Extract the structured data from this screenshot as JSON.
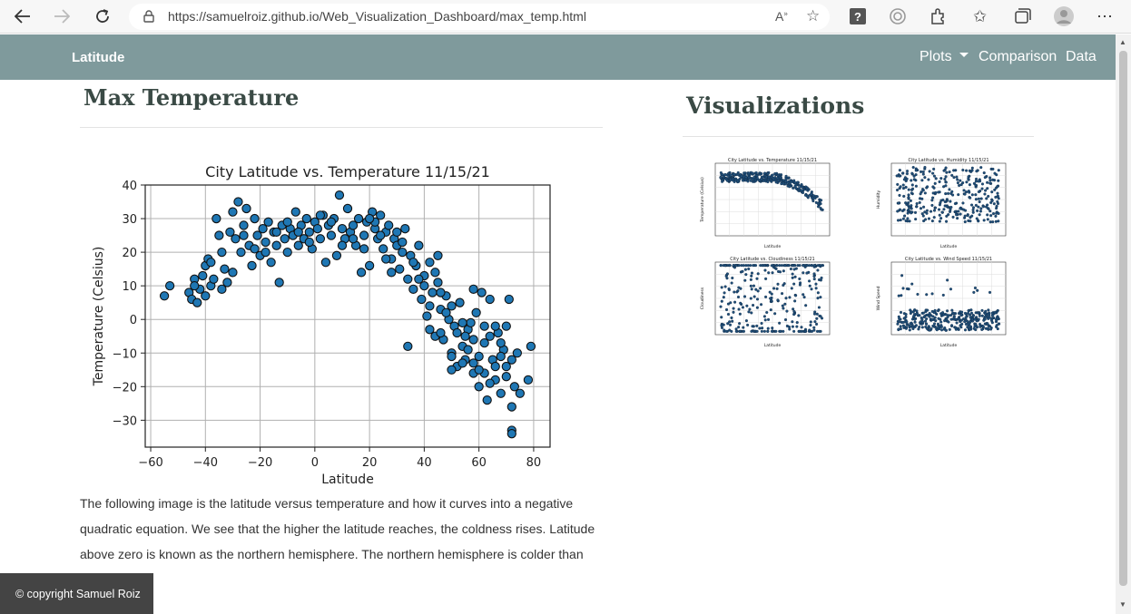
{
  "browser": {
    "url": "https://samuelroiz.github.io/Web_Visualization_Dashboard/max_temp.html"
  },
  "navbar": {
    "brand": "Latitude",
    "links": [
      "Plots",
      "Comparison",
      "Data"
    ]
  },
  "page": {
    "title": "Max Temperature",
    "visualizations_heading": "Visualizations",
    "description": "The following image is the latitude versus temperature and how it curves into a negative quadratic equation. We see that the higher the latitude reaches, the coldness rises. Latitude above zero is known as the northern hemisphere. The northern hemisphere is colder than hemisphere.",
    "footer": "© copyright Samuel Roiz"
  },
  "colors": {
    "navbar": "#7f9a9c",
    "marker": "#1f77b4",
    "heading": "#3a4a45"
  },
  "chart_data": {
    "type": "scatter",
    "title": "City Latitude vs. Temperature 11/15/21",
    "xlabel": "Latitude",
    "ylabel": "Temperature (Celsius)",
    "xlim": [
      -62,
      86
    ],
    "ylim": [
      -38,
      40
    ],
    "xticks": [
      -60,
      -40,
      -20,
      0,
      20,
      40,
      60,
      80
    ],
    "yticks": [
      40,
      30,
      20,
      10,
      0,
      -10,
      -20,
      -30
    ],
    "grid": true,
    "points": [
      [
        -55,
        7
      ],
      [
        -53,
        10
      ],
      [
        -46,
        8
      ],
      [
        -45,
        6
      ],
      [
        -44,
        12
      ],
      [
        -43,
        5
      ],
      [
        -42,
        9
      ],
      [
        -41,
        13
      ],
      [
        -40,
        16
      ],
      [
        -39,
        18
      ],
      [
        -38,
        10
      ],
      [
        -37,
        12
      ],
      [
        -36,
        30
      ],
      [
        -35,
        25
      ],
      [
        -34,
        20
      ],
      [
        -33,
        15
      ],
      [
        -32,
        11
      ],
      [
        -31,
        26
      ],
      [
        -30,
        32
      ],
      [
        -29,
        24
      ],
      [
        -28,
        35
      ],
      [
        -27,
        20
      ],
      [
        -26,
        28
      ],
      [
        -25,
        33
      ],
      [
        -24,
        22
      ],
      [
        -23,
        16
      ],
      [
        -22,
        30
      ],
      [
        -21,
        25
      ],
      [
        -20,
        19
      ],
      [
        -19,
        27
      ],
      [
        -18,
        23
      ],
      [
        -17,
        29
      ],
      [
        -16,
        17
      ],
      [
        -15,
        26
      ],
      [
        -14,
        22
      ],
      [
        -13,
        11
      ],
      [
        -12,
        28
      ],
      [
        -11,
        24
      ],
      [
        -10,
        20
      ],
      [
        -9,
        27
      ],
      [
        -8,
        25
      ],
      [
        -7,
        32
      ],
      [
        -6,
        22
      ],
      [
        -5,
        28
      ],
      [
        -4,
        24
      ],
      [
        -3,
        30
      ],
      [
        -2,
        26
      ],
      [
        -1,
        21
      ],
      [
        0,
        29
      ],
      [
        1,
        27
      ],
      [
        2,
        24
      ],
      [
        3,
        31
      ],
      [
        4,
        17
      ],
      [
        5,
        28
      ],
      [
        6,
        25
      ],
      [
        7,
        30
      ],
      [
        8,
        19
      ],
      [
        9,
        37
      ],
      [
        10,
        27
      ],
      [
        11,
        24
      ],
      [
        12,
        33
      ],
      [
        13,
        26
      ],
      [
        14,
        28
      ],
      [
        15,
        22
      ],
      [
        16,
        30
      ],
      [
        17,
        14
      ],
      [
        18,
        25
      ],
      [
        19,
        29
      ],
      [
        20,
        16
      ],
      [
        21,
        32
      ],
      [
        22,
        27
      ],
      [
        23,
        24
      ],
      [
        24,
        31
      ],
      [
        25,
        21
      ],
      [
        26,
        26
      ],
      [
        27,
        28
      ],
      [
        28,
        18
      ],
      [
        29,
        24
      ],
      [
        30,
        22
      ],
      [
        31,
        15
      ],
      [
        32,
        20
      ],
      [
        33,
        27
      ],
      [
        34,
        12
      ],
      [
        35,
        19
      ],
      [
        36,
        9
      ],
      [
        37,
        16
      ],
      [
        38,
        22
      ],
      [
        39,
        6
      ],
      [
        40,
        13
      ],
      [
        41,
        1
      ],
      [
        42,
        17
      ],
      [
        43,
        8
      ],
      [
        44,
        -5
      ],
      [
        45,
        11
      ],
      [
        46,
        3
      ],
      [
        47,
        -6
      ],
      [
        48,
        7
      ],
      [
        49,
        0
      ],
      [
        50,
        -10
      ],
      [
        51,
        -2
      ],
      [
        52,
        -14
      ],
      [
        53,
        5
      ],
      [
        54,
        -8
      ],
      [
        55,
        -12
      ],
      [
        56,
        -3
      ],
      [
        57,
        -1
      ],
      [
        58,
        -16
      ],
      [
        59,
        2
      ],
      [
        60,
        -20
      ],
      [
        61,
        8
      ],
      [
        62,
        -7
      ],
      [
        63,
        -24
      ],
      [
        64,
        6
      ],
      [
        65,
        -12
      ],
      [
        66,
        -18
      ],
      [
        67,
        -4
      ],
      [
        68,
        -22
      ],
      [
        69,
        -9
      ],
      [
        70,
        -14
      ],
      [
        71,
        6
      ],
      [
        72,
        -33
      ],
      [
        72,
        -26
      ],
      [
        73,
        -20
      ],
      [
        74,
        -10
      ],
      [
        75,
        -22
      ],
      [
        78,
        -18
      ],
      [
        79,
        -8
      ],
      [
        34,
        -8
      ],
      [
        45,
        19
      ],
      [
        50,
        -15
      ],
      [
        55,
        -5
      ],
      [
        58,
        9
      ],
      [
        62,
        -16
      ],
      [
        66,
        -2
      ],
      [
        70,
        -17
      ],
      [
        42,
        4
      ],
      [
        48,
        2
      ],
      [
        52,
        -4
      ],
      [
        56,
        -9
      ],
      [
        60,
        -11
      ],
      [
        64,
        -5
      ],
      [
        68,
        -11
      ],
      [
        30,
        26
      ],
      [
        26,
        18
      ],
      [
        22,
        29
      ],
      [
        18,
        21
      ],
      [
        14,
        24
      ],
      [
        10,
        22
      ],
      [
        6,
        29
      ],
      [
        2,
        31
      ],
      [
        -2,
        23
      ],
      [
        -6,
        26
      ],
      [
        -10,
        29
      ],
      [
        -14,
        26
      ],
      [
        -18,
        20
      ],
      [
        -22,
        21
      ],
      [
        -26,
        25
      ],
      [
        -30,
        14
      ],
      [
        -34,
        9
      ],
      [
        -38,
        17
      ],
      [
        -40,
        7
      ],
      [
        -44,
        10
      ],
      [
        36,
        17
      ],
      [
        40,
        10
      ],
      [
        44,
        14
      ],
      [
        46,
        -4
      ],
      [
        50,
        4
      ],
      [
        54,
        -1
      ],
      [
        58,
        -13
      ],
      [
        62,
        -2
      ],
      [
        66,
        -14
      ],
      [
        70,
        -2
      ],
      [
        72,
        -34
      ],
      [
        20,
        30
      ],
      [
        24,
        25
      ],
      [
        28,
        14
      ],
      [
        32,
        23
      ],
      [
        38,
        12
      ],
      [
        42,
        -3
      ],
      [
        46,
        8
      ],
      [
        50,
        -11
      ],
      [
        54,
        -13
      ],
      [
        58,
        -6
      ],
      [
        60,
        -15
      ],
      [
        64,
        -19
      ],
      [
        68,
        -7
      ],
      [
        72,
        -12
      ]
    ]
  },
  "thumbnails": [
    {
      "title": "City Latitude vs. Temperature 11/15/21",
      "xlabel": "Latitude",
      "ylabel": "Temperature (Celsius)"
    },
    {
      "title": "City Latitude vs. Humidity 11/15/21",
      "xlabel": "Latitude",
      "ylabel": "Humidity"
    },
    {
      "title": "City Latitude vs. Cloudiness 11/15/21",
      "xlabel": "Latitude",
      "ylabel": "Cloudiness"
    },
    {
      "title": "City Latitude vs. Wind Speed 11/15/21",
      "xlabel": "Latitude",
      "ylabel": "Wind Speed"
    }
  ]
}
